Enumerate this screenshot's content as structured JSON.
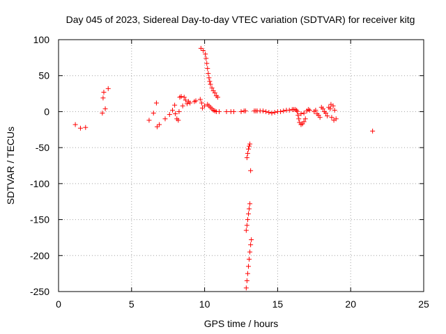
{
  "chart_data": {
    "type": "scatter",
    "title": "Day 045 of 2023, Sidereal Day-to-day VTEC variation (SDTVAR) for receiver kitg",
    "xlabel": "GPS time / hours",
    "ylabel": "SDTVAR / TECUs",
    "xlim": [
      0,
      25
    ],
    "ylim": [
      -250,
      100
    ],
    "xticks": [
      0,
      5,
      10,
      15,
      20,
      25
    ],
    "yticks": [
      100,
      50,
      0,
      -50,
      -100,
      -150,
      -200,
      -250
    ],
    "xtick_labels": [
      "0",
      "5",
      "10",
      "15",
      "20",
      "25"
    ],
    "ytick_labels": [
      "100",
      "50",
      "0",
      "-50",
      "-100",
      "-150",
      "-200",
      "-250"
    ],
    "grid": true,
    "marker": "+",
    "color": "#ff0000",
    "series": [
      {
        "name": "SDTVAR",
        "points": [
          [
            1.15,
            -18
          ],
          [
            1.5,
            -23
          ],
          [
            1.85,
            -22
          ],
          [
            3.0,
            -2
          ],
          [
            3.05,
            19
          ],
          [
            3.1,
            27
          ],
          [
            3.2,
            4
          ],
          [
            3.4,
            32
          ],
          [
            6.2,
            -12
          ],
          [
            6.5,
            -2
          ],
          [
            6.7,
            12
          ],
          [
            6.75,
            -21
          ],
          [
            6.9,
            -18
          ],
          [
            7.3,
            -10
          ],
          [
            7.6,
            -4
          ],
          [
            7.8,
            2
          ],
          [
            7.95,
            9
          ],
          [
            8.0,
            -3
          ],
          [
            8.1,
            -10
          ],
          [
            8.2,
            -12
          ],
          [
            8.25,
            0
          ],
          [
            8.3,
            20
          ],
          [
            8.4,
            21
          ],
          [
            8.5,
            8
          ],
          [
            8.6,
            20
          ],
          [
            8.7,
            16
          ],
          [
            8.8,
            11
          ],
          [
            8.9,
            14
          ],
          [
            9.0,
            12
          ],
          [
            9.3,
            14
          ],
          [
            9.4,
            15
          ],
          [
            9.7,
            17
          ],
          [
            9.75,
            88
          ],
          [
            9.8,
            12
          ],
          [
            9.85,
            5
          ],
          [
            9.9,
            85
          ],
          [
            10.0,
            8
          ],
          [
            10.05,
            80
          ],
          [
            10.1,
            74
          ],
          [
            10.15,
            67
          ],
          [
            10.2,
            60
          ],
          [
            10.25,
            53
          ],
          [
            10.3,
            47
          ],
          [
            10.35,
            42
          ],
          [
            10.4,
            38
          ],
          [
            10.5,
            33
          ],
          [
            10.6,
            29
          ],
          [
            10.7,
            26
          ],
          [
            10.8,
            22
          ],
          [
            10.9,
            20
          ],
          [
            10.2,
            10
          ],
          [
            10.3,
            8
          ],
          [
            10.4,
            6
          ],
          [
            10.5,
            4
          ],
          [
            10.6,
            2
          ],
          [
            10.7,
            1
          ],
          [
            10.8,
            0
          ],
          [
            11.0,
            0
          ],
          [
            11.5,
            0
          ],
          [
            11.8,
            0
          ],
          [
            12.0,
            0
          ],
          [
            12.5,
            0
          ],
          [
            12.7,
            1
          ],
          [
            12.8,
            1
          ],
          [
            12.9,
            -64
          ],
          [
            12.95,
            -58
          ],
          [
            13.0,
            -52
          ],
          [
            13.05,
            -48
          ],
          [
            13.1,
            -45
          ],
          [
            13.15,
            -82
          ],
          [
            12.85,
            -165
          ],
          [
            12.9,
            -158
          ],
          [
            12.95,
            -150
          ],
          [
            13.0,
            -142
          ],
          [
            13.05,
            -135
          ],
          [
            13.1,
            -128
          ],
          [
            12.85,
            -245
          ],
          [
            12.9,
            -235
          ],
          [
            12.95,
            -225
          ],
          [
            13.0,
            -215
          ],
          [
            13.05,
            -205
          ],
          [
            13.1,
            -195
          ],
          [
            13.15,
            -185
          ],
          [
            13.2,
            -178
          ],
          [
            13.4,
            1
          ],
          [
            13.5,
            1
          ],
          [
            13.6,
            1
          ],
          [
            13.8,
            1
          ],
          [
            14.0,
            1
          ],
          [
            14.2,
            0
          ],
          [
            14.4,
            -1
          ],
          [
            14.6,
            -2
          ],
          [
            14.8,
            -1
          ],
          [
            15.0,
            0
          ],
          [
            15.2,
            0
          ],
          [
            15.4,
            1
          ],
          [
            15.6,
            2
          ],
          [
            15.8,
            2
          ],
          [
            16.0,
            3
          ],
          [
            16.1,
            3
          ],
          [
            16.2,
            3
          ],
          [
            16.3,
            2
          ],
          [
            16.35,
            0
          ],
          [
            16.4,
            -5
          ],
          [
            16.45,
            -10
          ],
          [
            16.5,
            -15
          ],
          [
            16.6,
            -18
          ],
          [
            16.7,
            -17
          ],
          [
            16.8,
            -14
          ],
          [
            16.9,
            -10
          ],
          [
            16.6,
            -3
          ],
          [
            16.8,
            -2
          ],
          [
            17.0,
            1
          ],
          [
            17.1,
            3
          ],
          [
            17.2,
            2
          ],
          [
            17.5,
            0
          ],
          [
            17.6,
            2
          ],
          [
            17.7,
            -3
          ],
          [
            17.8,
            -5
          ],
          [
            17.9,
            -8
          ],
          [
            18.0,
            6
          ],
          [
            18.1,
            4
          ],
          [
            18.2,
            0
          ],
          [
            18.3,
            -2
          ],
          [
            18.4,
            -6
          ],
          [
            18.5,
            6
          ],
          [
            18.6,
            4
          ],
          [
            18.65,
            10
          ],
          [
            18.7,
            -8
          ],
          [
            18.8,
            8
          ],
          [
            18.85,
            -12
          ],
          [
            18.9,
            2
          ],
          [
            19.0,
            -10
          ],
          [
            21.5,
            -27
          ]
        ]
      }
    ]
  }
}
